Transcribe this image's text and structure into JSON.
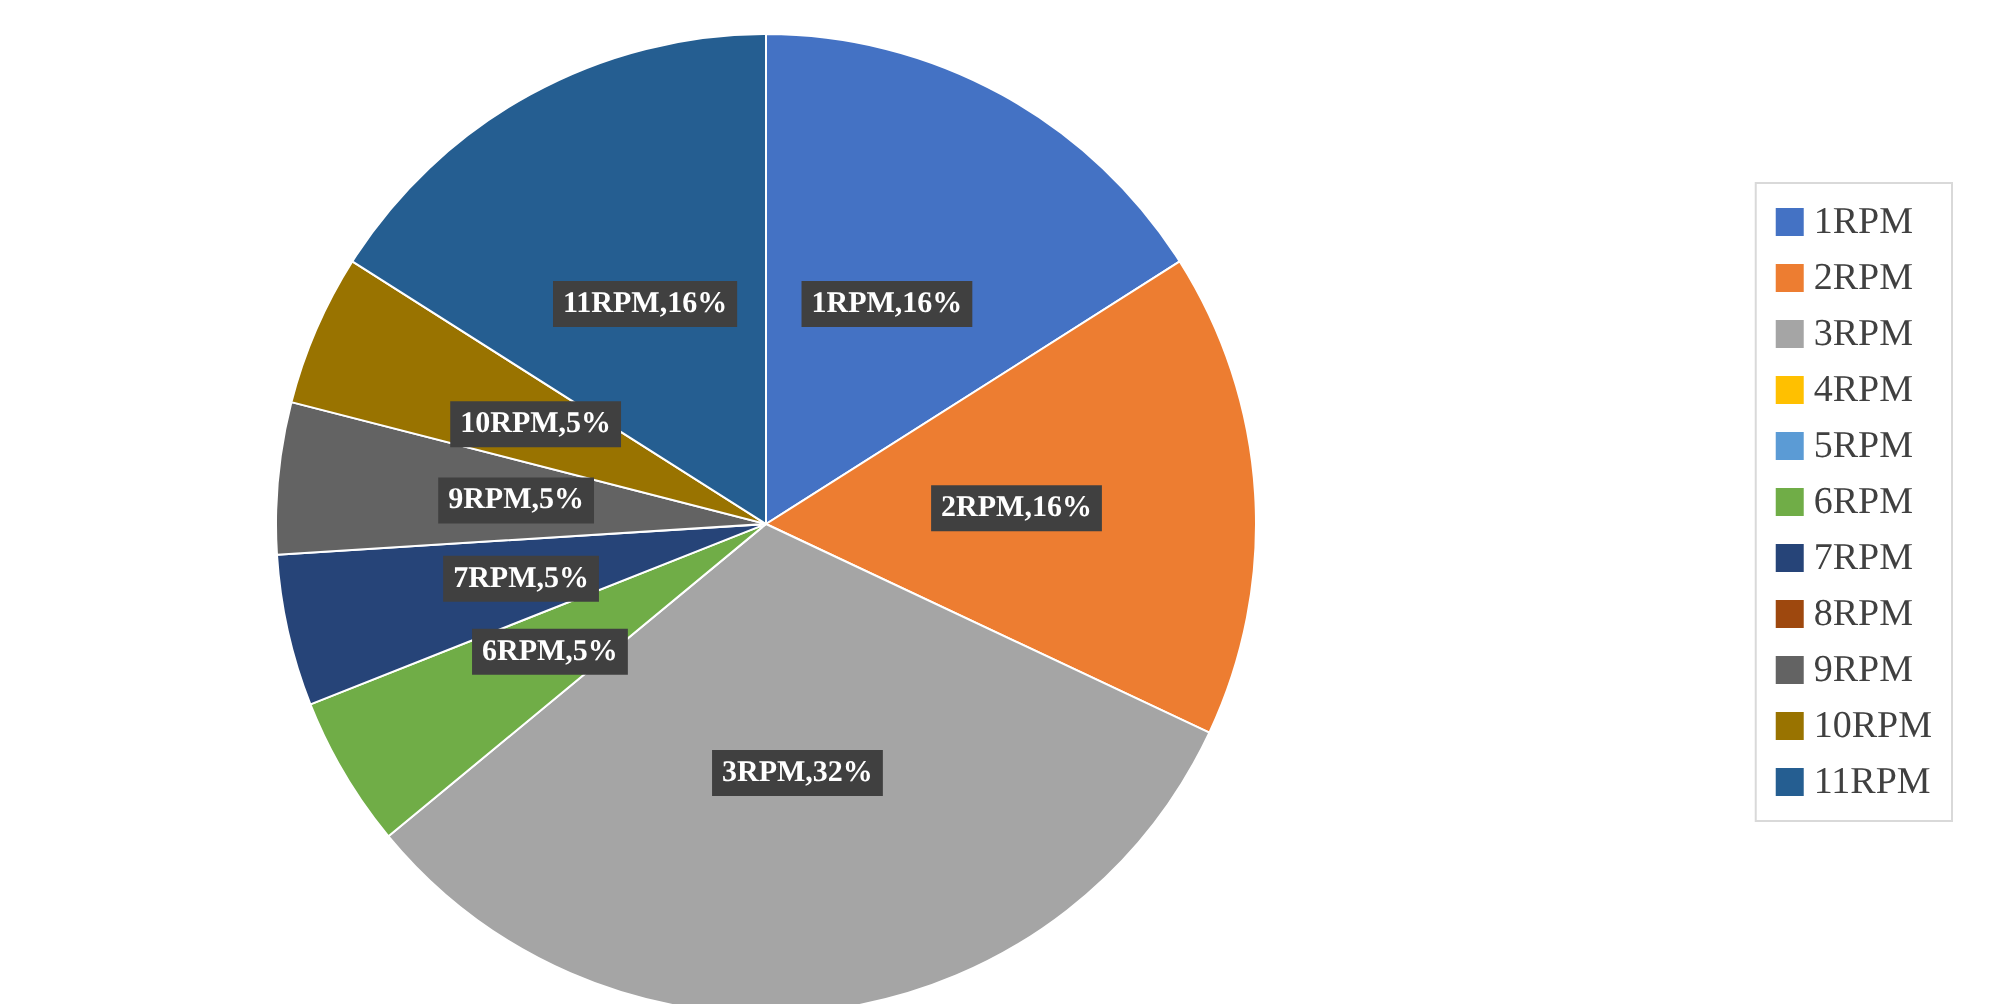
{
  "chart_data": {
    "type": "pie",
    "categories": [
      "1RPM",
      "2RPM",
      "3RPM",
      "4RPM",
      "5RPM",
      "6RPM",
      "7RPM",
      "8RPM",
      "9RPM",
      "10RPM",
      "11RPM"
    ],
    "values": [
      16,
      16,
      32,
      0,
      0,
      5,
      5,
      0,
      5,
      5,
      16
    ],
    "colors": [
      "#4472c4",
      "#ed7d31",
      "#a5a5a5",
      "#ffc000",
      "#5b9bd5",
      "#70ad47",
      "#264478",
      "#9e480e",
      "#636363",
      "#997300",
      "#255e91"
    ],
    "value_labels": [
      "1RPM,16%",
      "2RPM,16%",
      "3RPM,32%",
      null,
      null,
      "6RPM,5%",
      "7RPM,5%",
      null,
      "9RPM,5%",
      "10RPM,5%",
      "11RPM,16%"
    ],
    "legend": "right"
  }
}
